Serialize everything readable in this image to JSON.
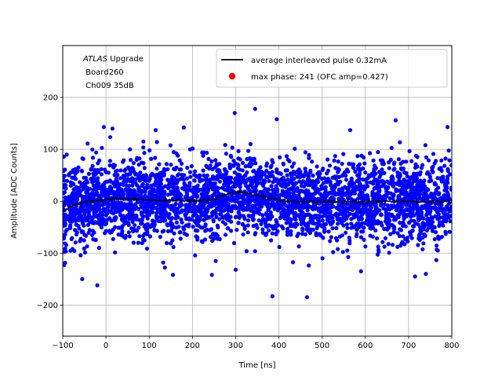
{
  "chart_data": {
    "type": "scatter",
    "xlabel": "Time [ns]",
    "ylabel": "Amplitude [ADC Counts]",
    "xlim": [
      -100,
      800
    ],
    "ylim": [
      -260,
      300
    ],
    "xticks": [
      -100,
      0,
      100,
      200,
      300,
      400,
      500,
      600,
      700,
      800
    ],
    "yticks": [
      -200,
      -100,
      0,
      100,
      200
    ],
    "grid": true,
    "legend_position": "top-right",
    "annotation": {
      "line1_italic": "ATLAS",
      "line1_rest": " Upgrade",
      "line2": " Board260",
      "line3": " Ch009 35dB"
    },
    "series": [
      {
        "name": "average interleaved pulse 0.32mA",
        "kind": "line",
        "color": "#000000",
        "x": [
          -100,
          -90,
          -80,
          -70,
          -60,
          -50,
          -40,
          -30,
          -20,
          -10,
          0,
          20,
          40,
          60,
          80,
          100,
          120,
          140,
          160,
          180,
          200,
          220,
          240,
          250,
          260,
          270,
          280,
          290,
          300,
          310,
          320,
          330,
          340,
          360,
          380,
          400,
          420,
          440,
          460,
          480,
          500,
          550,
          600,
          650,
          700,
          750,
          800
        ],
        "y": [
          -20,
          -14,
          -9,
          -6,
          -4,
          -2,
          -1,
          0,
          1,
          2,
          3,
          4,
          5,
          4,
          3,
          3,
          2,
          2,
          2,
          1,
          1,
          1,
          2,
          4,
          7,
          11,
          15,
          17,
          18,
          17,
          16,
          15,
          13,
          10,
          6,
          2,
          0,
          -1,
          -1,
          -1,
          -1,
          -1,
          -1,
          -1,
          -1,
          -1,
          -1
        ]
      },
      {
        "name": "max phase: 241 (OFC amp=0.427)",
        "kind": "points",
        "color": "#ff0000"
      },
      {
        "name": "",
        "kind": "scatter",
        "color": "#0000ff",
        "spread_sigma": 38,
        "extremes": [
          {
            "x": -5,
            "y": 143
          },
          {
            "x": 15,
            "y": 140
          },
          {
            "x": 115,
            "y": 137
          },
          {
            "x": 180,
            "y": 142
          },
          {
            "x": 298,
            "y": 170
          },
          {
            "x": 345,
            "y": 178
          },
          {
            "x": 395,
            "y": 158
          },
          {
            "x": 565,
            "y": 137
          },
          {
            "x": 670,
            "y": 156
          },
          {
            "x": 790,
            "y": 143
          },
          {
            "x": -20,
            "y": -162
          },
          {
            "x": -55,
            "y": -150
          },
          {
            "x": 385,
            "y": -183
          },
          {
            "x": 465,
            "y": -185
          },
          {
            "x": 300,
            "y": -132
          },
          {
            "x": 155,
            "y": -142
          },
          {
            "x": 715,
            "y": -145
          },
          {
            "x": 740,
            "y": -140
          },
          {
            "x": 245,
            "y": -142
          },
          {
            "x": 590,
            "y": -135
          }
        ]
      }
    ]
  }
}
